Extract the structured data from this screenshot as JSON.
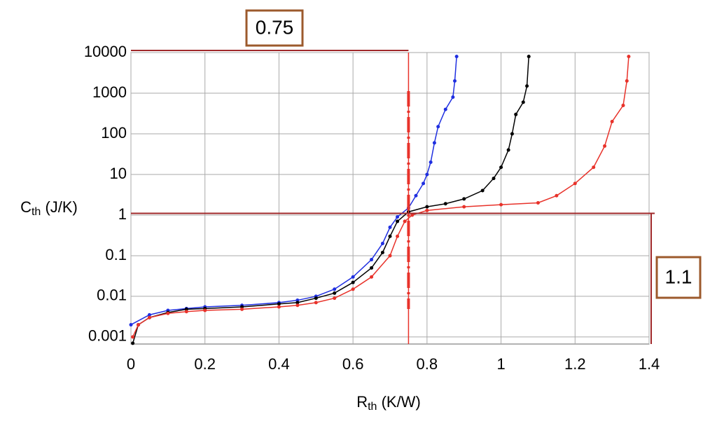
{
  "chart_data": {
    "type": "line",
    "log_y": true,
    "grid": true,
    "x_label": {
      "main": "R",
      "sub": "th",
      "unit": " (K/W)"
    },
    "y_label": {
      "main": "C",
      "sub": "th",
      "unit": " (J/K)"
    },
    "xlim": [
      0,
      1.4
    ],
    "ylim": [
      0.00067,
      10000
    ],
    "xticks": [
      0,
      0.2,
      0.4,
      0.6,
      0.8,
      1,
      1.2,
      1.4
    ],
    "yticks": [
      0.001,
      0.01,
      0.1,
      1,
      10,
      100,
      1000,
      10000
    ],
    "series": [
      {
        "color": "#1f2fe0",
        "x": [
          0,
          0.05,
          0.1,
          0.15,
          0.2,
          0.3,
          0.4,
          0.45,
          0.5,
          0.55,
          0.6,
          0.65,
          0.68,
          0.7,
          0.72,
          0.75,
          0.77,
          0.79,
          0.8,
          0.81,
          0.82,
          0.83,
          0.85,
          0.87,
          0.875,
          0.88
        ],
        "values": [
          0.002,
          0.0035,
          0.0045,
          0.005,
          0.0055,
          0.006,
          0.007,
          0.008,
          0.01,
          0.015,
          0.03,
          0.08,
          0.2,
          0.5,
          0.9,
          1.5,
          3,
          6,
          10,
          20,
          60,
          150,
          400,
          800,
          2000,
          8000
        ]
      },
      {
        "color": "#000000",
        "x": [
          0.005,
          0.02,
          0.05,
          0.1,
          0.15,
          0.2,
          0.3,
          0.4,
          0.45,
          0.5,
          0.55,
          0.6,
          0.65,
          0.68,
          0.7,
          0.72,
          0.75,
          0.8,
          0.85,
          0.9,
          0.95,
          0.98,
          1.0,
          1.02,
          1.03,
          1.04,
          1.06,
          1.07,
          1.075
        ],
        "values": [
          0.0007,
          0.002,
          0.003,
          0.004,
          0.0048,
          0.005,
          0.0055,
          0.0065,
          0.007,
          0.009,
          0.012,
          0.022,
          0.05,
          0.12,
          0.3,
          0.7,
          1.2,
          1.6,
          1.9,
          2.5,
          4,
          8,
          15,
          40,
          100,
          300,
          600,
          1500,
          8000
        ]
      },
      {
        "color": "#e8322a",
        "x": [
          0.005,
          0.02,
          0.05,
          0.1,
          0.15,
          0.2,
          0.3,
          0.4,
          0.45,
          0.5,
          0.55,
          0.6,
          0.65,
          0.7,
          0.72,
          0.74,
          0.76,
          0.8,
          0.9,
          1.0,
          1.1,
          1.15,
          1.2,
          1.25,
          1.28,
          1.3,
          1.33,
          1.34,
          1.345
        ],
        "values": [
          0.001,
          0.002,
          0.003,
          0.0038,
          0.0042,
          0.0045,
          0.0048,
          0.0055,
          0.006,
          0.007,
          0.009,
          0.015,
          0.03,
          0.1,
          0.3,
          0.7,
          1.0,
          1.3,
          1.6,
          1.8,
          2,
          3,
          6,
          15,
          50,
          200,
          500,
          2000,
          8000
        ]
      }
    ],
    "annotations": [
      {
        "text": "0.75",
        "x": 0.75
      },
      {
        "text": "1.1",
        "y": 1.1
      }
    ]
  }
}
